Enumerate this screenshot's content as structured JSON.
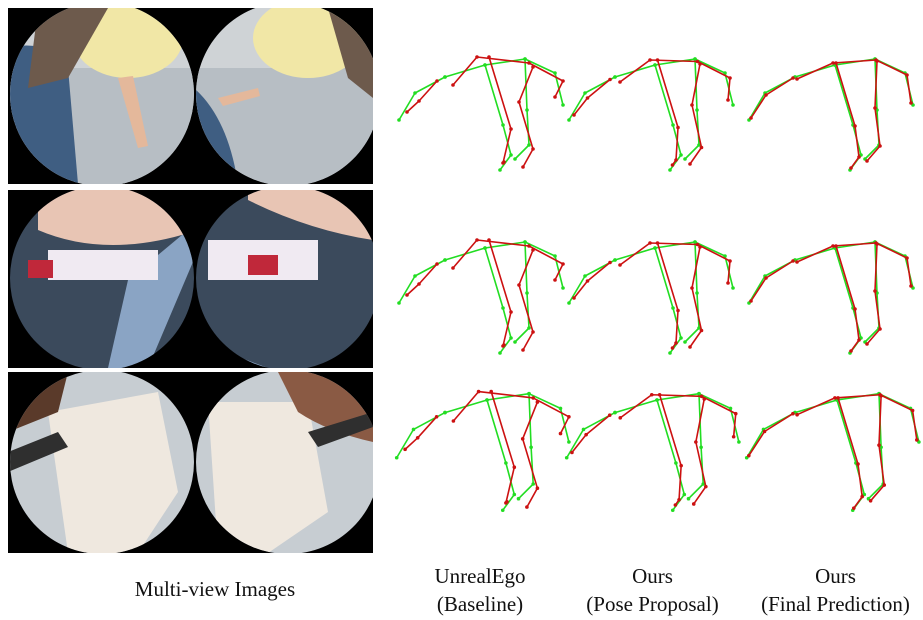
{
  "captions": {
    "multi_view": "Multi-view Images",
    "unrealego_line1": "UnrealEgo",
    "unrealego_line2": "(Baseline)",
    "proposal_line1": "Ours",
    "proposal_line2": "(Pose Proposal)",
    "final_line1": "Ours",
    "final_line2": "(Final Prediction)"
  },
  "colors": {
    "ground_truth": "#22dd22",
    "prediction": "#cc1111",
    "background": "#ffffff",
    "panel_bg": "#000000"
  }
}
